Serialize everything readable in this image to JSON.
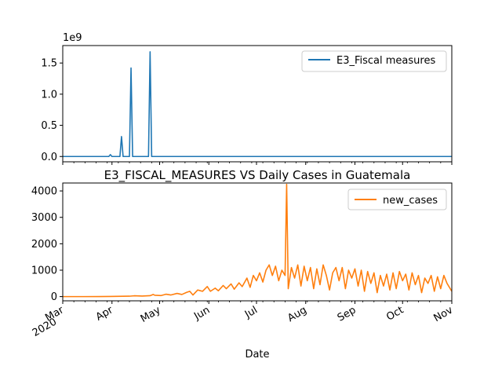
{
  "chart_data": [
    {
      "type": "line",
      "title": "",
      "xlabel": "",
      "ylabel": "",
      "x_axis": "dates 2020-03-01 to 2020-11-01 (shared)",
      "ylim": [
        -0.085,
        1.78
      ],
      "y_ticks": [
        0.0,
        0.5,
        1.0,
        1.5
      ],
      "y_tick_labels": [
        "0.0",
        "0.5",
        "1.0",
        "1.5"
      ],
      "offset_text": "1e9",
      "legend_position": "upper right",
      "series": [
        {
          "name": "E3_Fiscal measures",
          "color": "#1f77b4",
          "spikes": [
            {
              "date": "2020-03-31",
              "value": 0.03
            },
            {
              "date": "2020-04-07",
              "value": 0.32
            },
            {
              "date": "2020-04-13",
              "value": 1.42
            },
            {
              "date": "2020-04-25",
              "value": 1.68
            }
          ],
          "baseline_value": 0
        }
      ]
    },
    {
      "type": "line",
      "title": "E3_FISCAL_MEASURES VS Daily Cases in Guatemala",
      "xlabel": "Date",
      "ylabel": "",
      "ylim": [
        -160,
        4300
      ],
      "y_ticks": [
        0,
        1000,
        2000,
        3000,
        4000
      ],
      "y_tick_labels": [
        "0",
        "1000",
        "2000",
        "3000",
        "4000"
      ],
      "x_ticks": [
        "2020-03-01",
        "2020-04-01",
        "2020-05-01",
        "2020-06-01",
        "2020-07-01",
        "2020-08-01",
        "2020-09-01",
        "2020-10-01",
        "2020-11-01"
      ],
      "x_tick_labels": [
        "Mar\n2020",
        "Apr",
        "May",
        "Jun",
        "Jul",
        "Aug",
        "Sep",
        "Oct",
        "Nov"
      ],
      "legend_position": "upper right",
      "series": [
        {
          "name": "new_cases",
          "color": "#ff7f0e",
          "points": [
            [
              "2020-03-01",
              0
            ],
            [
              "2020-03-14",
              0
            ],
            [
              "2020-03-31",
              5
            ],
            [
              "2020-04-12",
              15
            ],
            [
              "2020-04-15",
              30
            ],
            [
              "2020-04-20",
              20
            ],
            [
              "2020-04-25",
              35
            ],
            [
              "2020-04-27",
              80
            ],
            [
              "2020-04-28",
              50
            ],
            [
              "2020-05-02",
              40
            ],
            [
              "2020-05-05",
              90
            ],
            [
              "2020-05-08",
              60
            ],
            [
              "2020-05-12",
              120
            ],
            [
              "2020-05-15",
              80
            ],
            [
              "2020-05-18",
              160
            ],
            [
              "2020-05-20",
              200
            ],
            [
              "2020-05-22",
              60
            ],
            [
              "2020-05-25",
              250
            ],
            [
              "2020-05-28",
              200
            ],
            [
              "2020-05-31",
              380
            ],
            [
              "2020-06-02",
              200
            ],
            [
              "2020-06-05",
              320
            ],
            [
              "2020-06-07",
              220
            ],
            [
              "2020-06-10",
              420
            ],
            [
              "2020-06-12",
              300
            ],
            [
              "2020-06-15",
              480
            ],
            [
              "2020-06-17",
              280
            ],
            [
              "2020-06-20",
              520
            ],
            [
              "2020-06-22",
              380
            ],
            [
              "2020-06-25",
              700
            ],
            [
              "2020-06-27",
              350
            ],
            [
              "2020-06-29",
              800
            ],
            [
              "2020-07-01",
              600
            ],
            [
              "2020-07-03",
              900
            ],
            [
              "2020-07-05",
              550
            ],
            [
              "2020-07-07",
              1000
            ],
            [
              "2020-07-09",
              1200
            ],
            [
              "2020-07-11",
              800
            ],
            [
              "2020-07-13",
              1150
            ],
            [
              "2020-07-15",
              600
            ],
            [
              "2020-07-17",
              1000
            ],
            [
              "2020-07-19",
              800
            ],
            [
              "2020-07-20",
              4250
            ],
            [
              "2020-07-21",
              300
            ],
            [
              "2020-07-23",
              1100
            ],
            [
              "2020-07-25",
              700
            ],
            [
              "2020-07-27",
              1200
            ],
            [
              "2020-07-29",
              400
            ],
            [
              "2020-07-31",
              1150
            ],
            [
              "2020-08-02",
              600
            ],
            [
              "2020-08-04",
              1100
            ],
            [
              "2020-08-06",
              300
            ],
            [
              "2020-08-08",
              1050
            ],
            [
              "2020-08-10",
              450
            ],
            [
              "2020-08-12",
              1200
            ],
            [
              "2020-08-14",
              800
            ],
            [
              "2020-08-16",
              250
            ],
            [
              "2020-08-18",
              900
            ],
            [
              "2020-08-20",
              1100
            ],
            [
              "2020-08-22",
              600
            ],
            [
              "2020-08-24",
              1100
            ],
            [
              "2020-08-26",
              300
            ],
            [
              "2020-08-28",
              1000
            ],
            [
              "2020-08-30",
              700
            ],
            [
              "2020-09-01",
              1050
            ],
            [
              "2020-09-03",
              400
            ],
            [
              "2020-09-05",
              1000
            ],
            [
              "2020-09-07",
              200
            ],
            [
              "2020-09-09",
              950
            ],
            [
              "2020-09-11",
              500
            ],
            [
              "2020-09-13",
              900
            ],
            [
              "2020-09-15",
              150
            ],
            [
              "2020-09-17",
              800
            ],
            [
              "2020-09-19",
              400
            ],
            [
              "2020-09-21",
              850
            ],
            [
              "2020-09-23",
              250
            ],
            [
              "2020-09-25",
              900
            ],
            [
              "2020-09-27",
              300
            ],
            [
              "2020-09-29",
              950
            ],
            [
              "2020-10-01",
              600
            ],
            [
              "2020-10-03",
              850
            ],
            [
              "2020-10-05",
              250
            ],
            [
              "2020-10-07",
              900
            ],
            [
              "2020-10-09",
              450
            ],
            [
              "2020-10-11",
              800
            ],
            [
              "2020-10-13",
              150
            ],
            [
              "2020-10-15",
              700
            ],
            [
              "2020-10-17",
              500
            ],
            [
              "2020-10-19",
              800
            ],
            [
              "2020-10-21",
              200
            ],
            [
              "2020-10-23",
              750
            ],
            [
              "2020-10-25",
              300
            ],
            [
              "2020-10-27",
              800
            ],
            [
              "2020-10-29",
              500
            ],
            [
              "2020-11-01",
              200
            ]
          ]
        }
      ]
    }
  ]
}
